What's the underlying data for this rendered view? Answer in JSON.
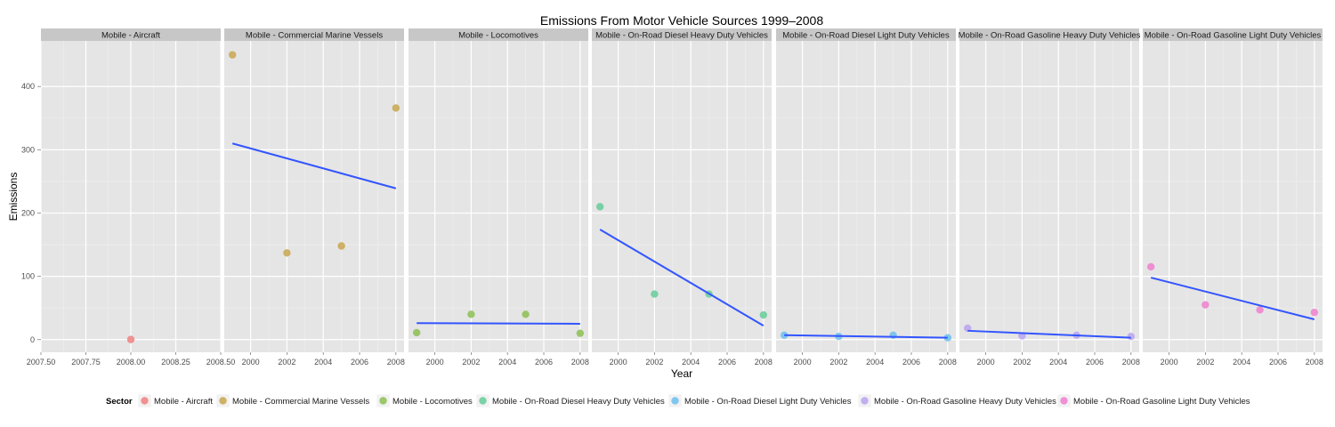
{
  "chart_data": {
    "type": "scatter",
    "title": "Emissions From Motor Vehicle Sources 1999–2008",
    "xlabel": "Year",
    "ylabel": "Emissions",
    "grid": true,
    "legend_position": "bottom",
    "legend_title": "Sector",
    "y_ticks": [
      0,
      100,
      200,
      300,
      400
    ],
    "ylim": [
      -20,
      472
    ],
    "trend_line_color": "#3355ff",
    "panels": [
      {
        "name": "Mobile - Aircraft",
        "color": "#f08080",
        "xlim": [
          2007.5,
          2008.5
        ],
        "x_ticks": [
          "2007.50",
          "2007.75",
          "2008.00",
          "2008.25",
          "2008.50"
        ],
        "x_tick_values": [
          2007.5,
          2007.75,
          2008.0,
          2008.25,
          2008.5
        ],
        "points": [
          {
            "x": 2008,
            "y": 0.2
          }
        ],
        "trend": null
      },
      {
        "name": "Mobile - Commercial Marine Vessels",
        "color": "#c9a64f",
        "xlim": [
          1998.55,
          2008.45
        ],
        "x_ticks": [
          "2000",
          "2002",
          "2004",
          "2006",
          "2008"
        ],
        "x_tick_values": [
          2000,
          2002,
          2004,
          2006,
          2008
        ],
        "points": [
          {
            "x": 1999,
            "y": 450
          },
          {
            "x": 2002,
            "y": 137
          },
          {
            "x": 2005,
            "y": 148
          },
          {
            "x": 2008,
            "y": 366
          }
        ],
        "trend": {
          "x1": 1999,
          "y1": 310,
          "x2": 2008,
          "y2": 239
        }
      },
      {
        "name": "Mobile - Locomotives",
        "color": "#8cbf52",
        "xlim": [
          1998.55,
          2008.45
        ],
        "x_ticks": [
          "2000",
          "2002",
          "2004",
          "2006",
          "2008"
        ],
        "x_tick_values": [
          2000,
          2002,
          2004,
          2006,
          2008
        ],
        "points": [
          {
            "x": 1999,
            "y": 11
          },
          {
            "x": 2002,
            "y": 40
          },
          {
            "x": 2005,
            "y": 40
          },
          {
            "x": 2008,
            "y": 10
          }
        ],
        "trend": {
          "x1": 1999,
          "y1": 26,
          "x2": 2008,
          "y2": 25
        }
      },
      {
        "name": "Mobile - On-Road Diesel Heavy Duty Vehicles",
        "color": "#66cc99",
        "xlim": [
          1998.55,
          2008.45
        ],
        "x_ticks": [
          "2000",
          "2002",
          "2004",
          "2006",
          "2008"
        ],
        "x_tick_values": [
          2000,
          2002,
          2004,
          2006,
          2008
        ],
        "points": [
          {
            "x": 1999,
            "y": 210
          },
          {
            "x": 2002,
            "y": 72
          },
          {
            "x": 2005,
            "y": 72
          },
          {
            "x": 2008,
            "y": 39
          }
        ],
        "trend": {
          "x1": 1999,
          "y1": 174,
          "x2": 2008,
          "y2": 22
        }
      },
      {
        "name": "Mobile - On-Road Diesel Light Duty Vehicles",
        "color": "#6cc0ee",
        "xlim": [
          1998.55,
          2008.45
        ],
        "x_ticks": [
          "2000",
          "2002",
          "2004",
          "2006",
          "2008"
        ],
        "x_tick_values": [
          2000,
          2002,
          2004,
          2006,
          2008
        ],
        "points": [
          {
            "x": 1999,
            "y": 7
          },
          {
            "x": 2002,
            "y": 5
          },
          {
            "x": 2005,
            "y": 7
          },
          {
            "x": 2008,
            "y": 3
          }
        ],
        "trend": {
          "x1": 1999,
          "y1": 7,
          "x2": 2008,
          "y2": 3
        }
      },
      {
        "name": "Mobile - On-Road Gasoline Heavy Duty Vehicles",
        "color": "#b9a3ee",
        "xlim": [
          1998.55,
          2008.45
        ],
        "x_ticks": [
          "2000",
          "2002",
          "2004",
          "2006",
          "2008"
        ],
        "x_tick_values": [
          2000,
          2002,
          2004,
          2006,
          2008
        ],
        "points": [
          {
            "x": 1999,
            "y": 18
          },
          {
            "x": 2002,
            "y": 6
          },
          {
            "x": 2005,
            "y": 7
          },
          {
            "x": 2008,
            "y": 5
          }
        ],
        "trend": {
          "x1": 1999,
          "y1": 14,
          "x2": 2008,
          "y2": 3
        }
      },
      {
        "name": "Mobile - On-Road Gasoline Light Duty Vehicles",
        "color": "#f07fd0",
        "xlim": [
          1998.55,
          2008.45
        ],
        "x_ticks": [
          "2000",
          "2002",
          "2004",
          "2006",
          "2008"
        ],
        "x_tick_values": [
          2000,
          2002,
          2004,
          2006,
          2008
        ],
        "points": [
          {
            "x": 1999,
            "y": 115
          },
          {
            "x": 2002,
            "y": 55
          },
          {
            "x": 2005,
            "y": 47
          },
          {
            "x": 2008,
            "y": 43
          }
        ],
        "trend": {
          "x1": 1999,
          "y1": 98,
          "x2": 2008,
          "y2": 32
        }
      }
    ]
  }
}
